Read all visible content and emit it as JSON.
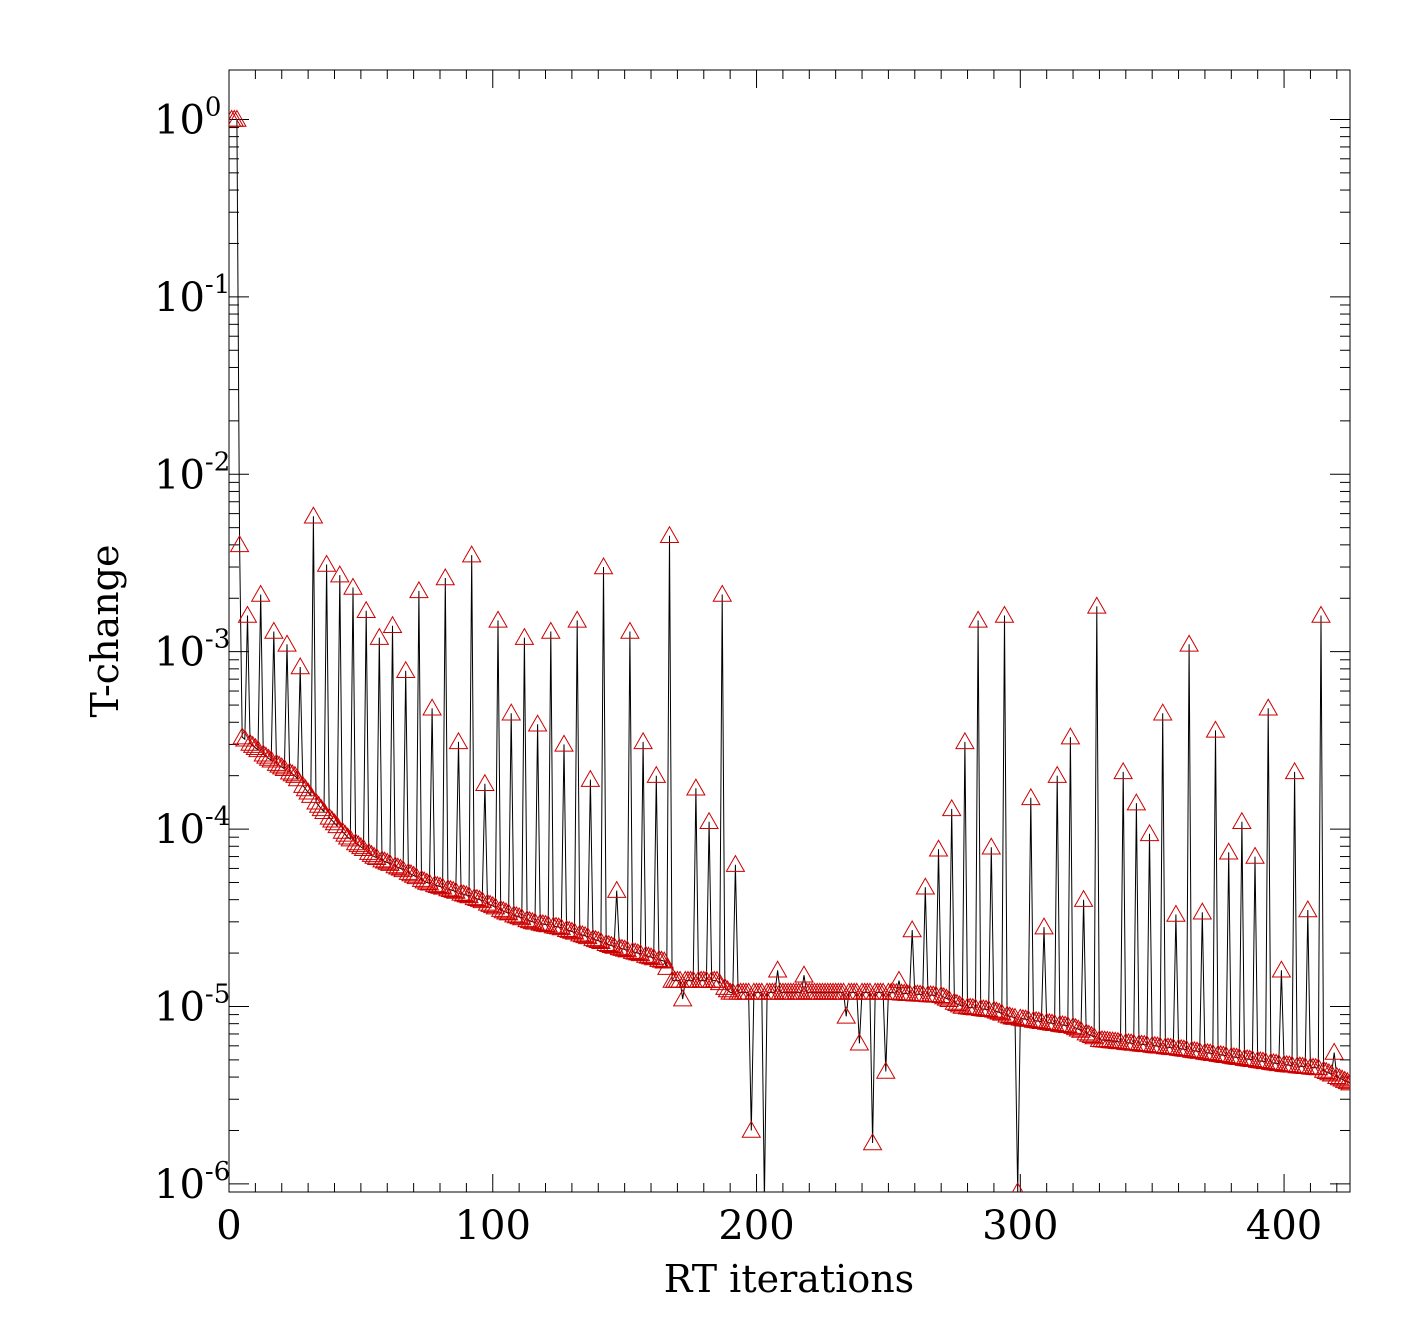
{
  "chart_data": {
    "type": "line",
    "title": "",
    "xlabel": "RT iterations",
    "ylabel": "T-change",
    "xlim": [
      0,
      425
    ],
    "ylim": [
      9e-07,
      1.9
    ],
    "yscale": "log",
    "grid": false,
    "x_ticks": [
      0,
      100,
      200,
      300,
      400
    ],
    "y_ticks": [
      {
        "value": 1,
        "base": "10",
        "exp": "0"
      },
      {
        "value": 0.1,
        "base": "10",
        "exp": "-1"
      },
      {
        "value": 0.01,
        "base": "10",
        "exp": "-2"
      },
      {
        "value": 0.001,
        "base": "10",
        "exp": "-3"
      },
      {
        "value": 0.0001,
        "base": "10",
        "exp": "-4"
      },
      {
        "value": 1e-05,
        "base": "10",
        "exp": "-5"
      },
      {
        "value": 1e-06,
        "base": "10",
        "exp": "-6"
      }
    ],
    "marker": "triangle-open",
    "line_color": "#000000",
    "marker_color": "#cc0000",
    "anchors": [
      [
        1,
        1.0
      ],
      [
        3,
        1.0
      ],
      [
        5,
        0.00033
      ],
      [
        15,
        0.00025
      ],
      [
        25,
        0.0002
      ],
      [
        35,
        0.00013
      ],
      [
        45,
        9e-05
      ],
      [
        55,
        7e-05
      ],
      [
        65,
        6e-05
      ],
      [
        75,
        5e-05
      ],
      [
        85,
        4.5e-05
      ],
      [
        95,
        4e-05
      ],
      [
        105,
        3.4e-05
      ],
      [
        115,
        3e-05
      ],
      [
        125,
        2.8e-05
      ],
      [
        135,
        2.5e-05
      ],
      [
        145,
        2.2e-05
      ],
      [
        155,
        2e-05
      ],
      [
        165,
        1.8e-05
      ],
      [
        168,
        1.4e-05
      ],
      [
        185,
        1.4e-05
      ],
      [
        190,
        1.2e-05
      ],
      [
        250,
        1.2e-05
      ],
      [
        270,
        1.15e-05
      ],
      [
        278,
        1e-05
      ],
      [
        290,
        9.5e-06
      ],
      [
        297,
        8.7e-06
      ],
      [
        320,
        7.7e-06
      ],
      [
        330,
        6.5e-06
      ],
      [
        360,
        5.8e-06
      ],
      [
        400,
        4.7e-06
      ],
      [
        413,
        4.5e-06
      ],
      [
        425,
        3.7e-06
      ]
    ],
    "spikes": [
      [
        4,
        0.004
      ],
      [
        7,
        0.0016
      ],
      [
        12,
        0.0021
      ],
      [
        17,
        0.0013
      ],
      [
        22,
        0.0011
      ],
      [
        27,
        0.00082
      ],
      [
        32,
        0.0058
      ],
      [
        37,
        0.0031
      ],
      [
        42,
        0.0027
      ],
      [
        47,
        0.0023
      ],
      [
        52,
        0.0017
      ],
      [
        57,
        0.0012
      ],
      [
        62,
        0.0014
      ],
      [
        67,
        0.00078
      ],
      [
        72,
        0.0022
      ],
      [
        77,
        0.00048
      ],
      [
        82,
        0.0026
      ],
      [
        87,
        0.00031
      ],
      [
        92,
        0.0035
      ],
      [
        97,
        0.00018
      ],
      [
        102,
        0.0015
      ],
      [
        107,
        0.00045
      ],
      [
        112,
        0.0012
      ],
      [
        117,
        0.00039
      ],
      [
        122,
        0.0013
      ],
      [
        127,
        0.0003
      ],
      [
        132,
        0.0015
      ],
      [
        137,
        0.00019
      ],
      [
        142,
        0.003
      ],
      [
        147,
        4.5e-05
      ],
      [
        152,
        0.0013
      ],
      [
        157,
        0.00031
      ],
      [
        162,
        0.0002
      ],
      [
        167,
        0.0045
      ],
      [
        172,
        1.1e-05
      ],
      [
        177,
        0.00017
      ],
      [
        182,
        0.00011
      ],
      [
        187,
        0.0021
      ],
      [
        192,
        6.3e-05
      ],
      [
        198,
        2e-06
      ],
      [
        203,
        8e-07
      ],
      [
        208,
        1.6e-05
      ],
      [
        218,
        1.5e-05
      ],
      [
        234,
        8.8e-06
      ],
      [
        239,
        6.2e-06
      ],
      [
        244,
        1.7e-06
      ],
      [
        249,
        4.3e-06
      ],
      [
        254,
        1.4e-05
      ],
      [
        259,
        2.7e-05
      ],
      [
        264,
        4.7e-05
      ],
      [
        269,
        7.7e-05
      ],
      [
        274,
        0.00013
      ],
      [
        279,
        0.00031
      ],
      [
        284,
        0.0015
      ],
      [
        289,
        7.9e-05
      ],
      [
        294,
        0.0016
      ],
      [
        299,
        9e-07
      ],
      [
        304,
        0.00015
      ],
      [
        309,
        2.8e-05
      ],
      [
        314,
        0.0002
      ],
      [
        319,
        0.00033
      ],
      [
        324,
        4e-05
      ],
      [
        329,
        0.0018
      ],
      [
        339,
        0.00021
      ],
      [
        344,
        0.00014
      ],
      [
        349,
        9.4e-05
      ],
      [
        354,
        0.00045
      ],
      [
        359,
        3.3e-05
      ],
      [
        364,
        0.0011
      ],
      [
        369,
        3.4e-05
      ],
      [
        374,
        0.00036
      ],
      [
        379,
        7.4e-05
      ],
      [
        384,
        0.00011
      ],
      [
        389,
        7e-05
      ],
      [
        394,
        0.00048
      ],
      [
        399,
        1.6e-05
      ],
      [
        404,
        0.00021
      ],
      [
        409,
        3.5e-05
      ],
      [
        414,
        0.0016
      ],
      [
        419,
        5.5e-06
      ]
    ]
  }
}
